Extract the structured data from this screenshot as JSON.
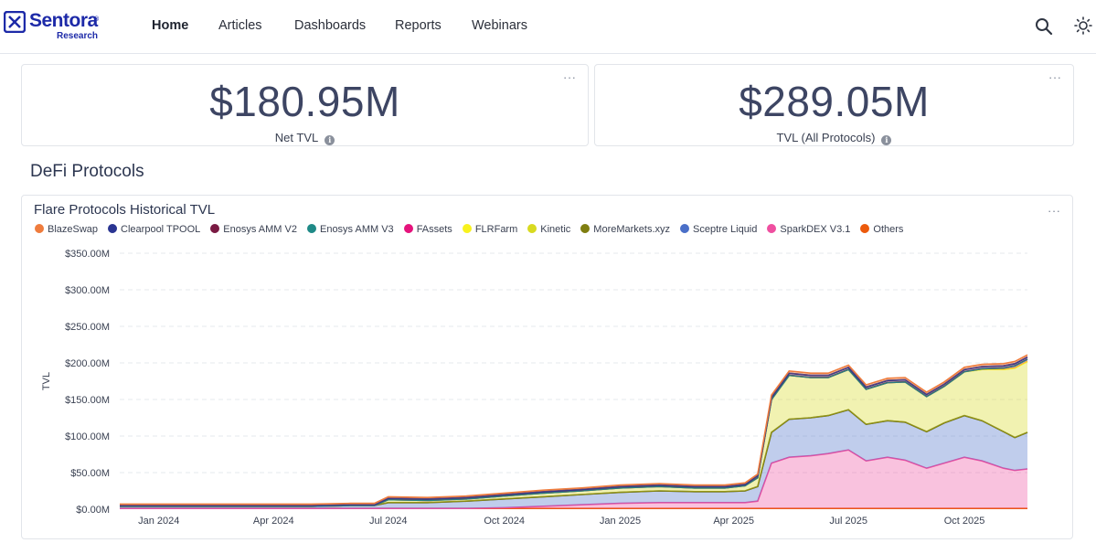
{
  "nav": {
    "brand_name": "Sentora",
    "brand_sub": "Research",
    "links": [
      "Home",
      "Articles",
      "Dashboards",
      "Reports",
      "Webinars"
    ],
    "active_link": "Home",
    "search_icon": "search-icon",
    "theme_icon": "sun-icon"
  },
  "kpis": [
    {
      "value": "$180.95M",
      "label": "Net TVL"
    },
    {
      "value": "$289.05M",
      "label": "TVL (All Protocols)"
    }
  ],
  "menu_label": "···",
  "section_title": "DeFi Protocols",
  "chart": {
    "title": "Flare Protocols Historical TVL"
  },
  "chart_data": {
    "type": "area",
    "stacked": true,
    "title": "Flare Protocols Historical TVL",
    "xlabel": "",
    "ylabel": "TVL",
    "x": [
      "2023-12-01",
      "2024-01-01",
      "2024-02-01",
      "2024-03-01",
      "2024-04-01",
      "2024-05-01",
      "2024-06-01",
      "2024-06-20",
      "2024-07-01",
      "2024-08-01",
      "2024-09-01",
      "2024-10-01",
      "2024-11-01",
      "2024-12-01",
      "2025-01-01",
      "2025-02-01",
      "2025-03-01",
      "2025-03-25",
      "2025-04-10",
      "2025-04-20",
      "2025-05-01",
      "2025-05-15",
      "2025-06-01",
      "2025-06-15",
      "2025-07-01",
      "2025-07-15",
      "2025-08-01",
      "2025-08-15",
      "2025-09-01",
      "2025-09-15",
      "2025-10-01",
      "2025-10-15",
      "2025-11-01",
      "2025-11-10",
      "2025-11-20"
    ],
    "x_ticks": [
      "Jan 2024",
      "Apr 2024",
      "Jul 2024",
      "Oct 2024",
      "Jan 2025",
      "Apr 2025",
      "Jul 2025",
      "Oct 2025"
    ],
    "x_tick_dates": [
      "2024-01-01",
      "2024-04-01",
      "2024-07-01",
      "2024-10-01",
      "2025-01-01",
      "2025-04-01",
      "2025-07-01",
      "2025-10-01"
    ],
    "y_ticks": [
      "$0.00M",
      "$50.00M",
      "$100.00M",
      "$150.00M",
      "$200.00M",
      "$250.00M",
      "$300.00M",
      "$350.00M"
    ],
    "ylim": [
      0,
      350
    ],
    "grid": true,
    "legend_position": "top-left",
    "series": [
      {
        "name": "BlazeSwap",
        "color": "#ef7c3d",
        "values": [
          2,
          2,
          2,
          2,
          2,
          2,
          2,
          2,
          2,
          2,
          2,
          2,
          2,
          2,
          2,
          2,
          2,
          2,
          2,
          2,
          3,
          3,
          3,
          3,
          3,
          3,
          3,
          3,
          3,
          3,
          3,
          3,
          3,
          3,
          3
        ]
      },
      {
        "name": "Clearpool TPOOL",
        "color": "#2a3592",
        "values": [
          0,
          0,
          0,
          0,
          0,
          0,
          0,
          0,
          0,
          0,
          0,
          0,
          0,
          0,
          0,
          0,
          0,
          0,
          0,
          0,
          0,
          0,
          0,
          0,
          0,
          0,
          0,
          0,
          0,
          0,
          0,
          0,
          0,
          0,
          0
        ]
      },
      {
        "name": "Enosys AMM V2",
        "color": "#7a1a43",
        "values": [
          1,
          1,
          1,
          1,
          1,
          1,
          1,
          1,
          2,
          2,
          2,
          2,
          2,
          2,
          2,
          2,
          2,
          2,
          2,
          3,
          3,
          3,
          3,
          3,
          3,
          3,
          3,
          3,
          3,
          3,
          3,
          3,
          3,
          3,
          3
        ]
      },
      {
        "name": "Enosys AMM V3",
        "color": "#1f8a87",
        "values": [
          0,
          0,
          0,
          0,
          0,
          0,
          0,
          0,
          0,
          0,
          0,
          0,
          0,
          0,
          0,
          0,
          0,
          0,
          0,
          0,
          0,
          0,
          0,
          0,
          0,
          0,
          0,
          0,
          0,
          0,
          0,
          0,
          0,
          0,
          0
        ]
      },
      {
        "name": "FAssets",
        "color": "#e5137c",
        "values": [
          0,
          0,
          0,
          0,
          0,
          0,
          0,
          0,
          0,
          0,
          0,
          0,
          0,
          0,
          0,
          0,
          0,
          0,
          0,
          0,
          0,
          0,
          0,
          0,
          0,
          0,
          0,
          0,
          0,
          0,
          0,
          1,
          2,
          3,
          3
        ]
      },
      {
        "name": "FLRFarm",
        "color": "#f8f21e",
        "values": [
          0,
          0,
          0,
          0,
          0,
          0,
          0,
          0,
          0,
          0,
          0,
          0,
          0,
          0,
          0,
          0,
          0,
          0,
          0,
          0,
          0,
          0,
          0,
          0,
          0,
          0,
          0,
          0,
          0,
          0,
          0,
          0,
          0,
          0,
          0
        ]
      },
      {
        "name": "Kinetic",
        "color": "#d8da20",
        "values": [
          0,
          0,
          0,
          0,
          0,
          0,
          0,
          0,
          4,
          3,
          3,
          4,
          5,
          5,
          6,
          6,
          5,
          5,
          7,
          12,
          45,
          60,
          55,
          52,
          55,
          48,
          52,
          55,
          48,
          50,
          60,
          70,
          85,
          95,
          97
        ]
      },
      {
        "name": "MoreMarkets.xyz",
        "color": "#7f7e10",
        "values": [
          0,
          0,
          0,
          0,
          0,
          0,
          0,
          0,
          0,
          0,
          0,
          0,
          0,
          0,
          0,
          0,
          0,
          0,
          0,
          0,
          0,
          0,
          0,
          0,
          0,
          0,
          0,
          0,
          0,
          0,
          0,
          0,
          0,
          0,
          0
        ]
      },
      {
        "name": "Sceptre Liquid",
        "color": "#4a6fc8",
        "values": [
          3,
          3,
          3,
          3,
          3,
          3,
          4,
          4,
          8,
          8,
          10,
          12,
          13,
          14,
          15,
          16,
          15,
          15,
          16,
          20,
          42,
          52,
          52,
          52,
          55,
          50,
          50,
          52,
          50,
          55,
          57,
          55,
          50,
          45,
          50
        ]
      },
      {
        "name": "SparkDEX V3.1",
        "color": "#ef4fa0",
        "values": [
          0,
          0,
          0,
          0,
          0,
          0,
          0,
          0,
          0,
          0,
          0,
          1,
          3,
          5,
          7,
          8,
          8,
          8,
          8,
          10,
          62,
          70,
          72,
          75,
          80,
          65,
          70,
          66,
          55,
          62,
          70,
          65,
          55,
          52,
          54
        ]
      },
      {
        "name": "Others",
        "color": "#ec5a0c",
        "values": [
          1,
          1,
          1,
          1,
          1,
          1,
          1,
          1,
          1,
          1,
          1,
          1,
          1,
          1,
          1,
          1,
          1,
          1,
          1,
          1,
          1,
          1,
          1,
          1,
          1,
          1,
          1,
          1,
          1,
          1,
          1,
          1,
          1,
          1,
          1
        ]
      }
    ]
  }
}
